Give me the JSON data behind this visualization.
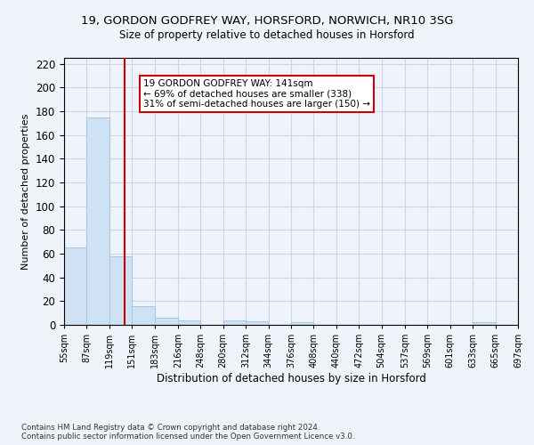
{
  "title": "19, GORDON GODFREY WAY, HORSFORD, NORWICH, NR10 3SG",
  "subtitle": "Size of property relative to detached houses in Horsford",
  "xlabel": "Distribution of detached houses by size in Horsford",
  "ylabel": "Number of detached properties",
  "bar_left_edges": [
    55,
    87,
    119,
    151,
    183,
    216,
    248,
    280,
    312,
    344,
    376,
    408,
    440,
    472,
    504,
    537,
    569,
    601,
    633,
    665
  ],
  "bar_widths": [
    32,
    32,
    32,
    32,
    33,
    32,
    32,
    32,
    32,
    32,
    32,
    32,
    32,
    32,
    33,
    32,
    32,
    32,
    32,
    32
  ],
  "bar_heights": [
    65,
    175,
    58,
    16,
    6,
    4,
    0,
    4,
    3,
    0,
    2,
    0,
    0,
    0,
    0,
    0,
    0,
    0,
    2,
    0
  ],
  "bar_color": "#cfe2f3",
  "bar_edge_color": "#a8c8e8",
  "grid_color": "#c8d8e8",
  "bg_color": "#eef4fa",
  "red_line_x": 141,
  "annotation_text": "19 GORDON GODFREY WAY: 141sqm\n← 69% of detached houses are smaller (338)\n31% of semi-detached houses are larger (150) →",
  "annotation_box_color": "#ffffff",
  "annotation_box_edge": "#cc0000",
  "ylim": [
    0,
    225
  ],
  "yticks": [
    0,
    20,
    40,
    60,
    80,
    100,
    120,
    140,
    160,
    180,
    200,
    220
  ],
  "xtick_labels": [
    "55sqm",
    "87sqm",
    "119sqm",
    "151sqm",
    "183sqm",
    "216sqm",
    "248sqm",
    "280sqm",
    "312sqm",
    "344sqm",
    "376sqm",
    "408sqm",
    "440sqm",
    "472sqm",
    "504sqm",
    "537sqm",
    "569sqm",
    "601sqm",
    "633sqm",
    "665sqm",
    "697sqm"
  ],
  "footer_line1": "Contains HM Land Registry data © Crown copyright and database right 2024.",
  "footer_line2": "Contains public sector information licensed under the Open Government Licence v3.0."
}
